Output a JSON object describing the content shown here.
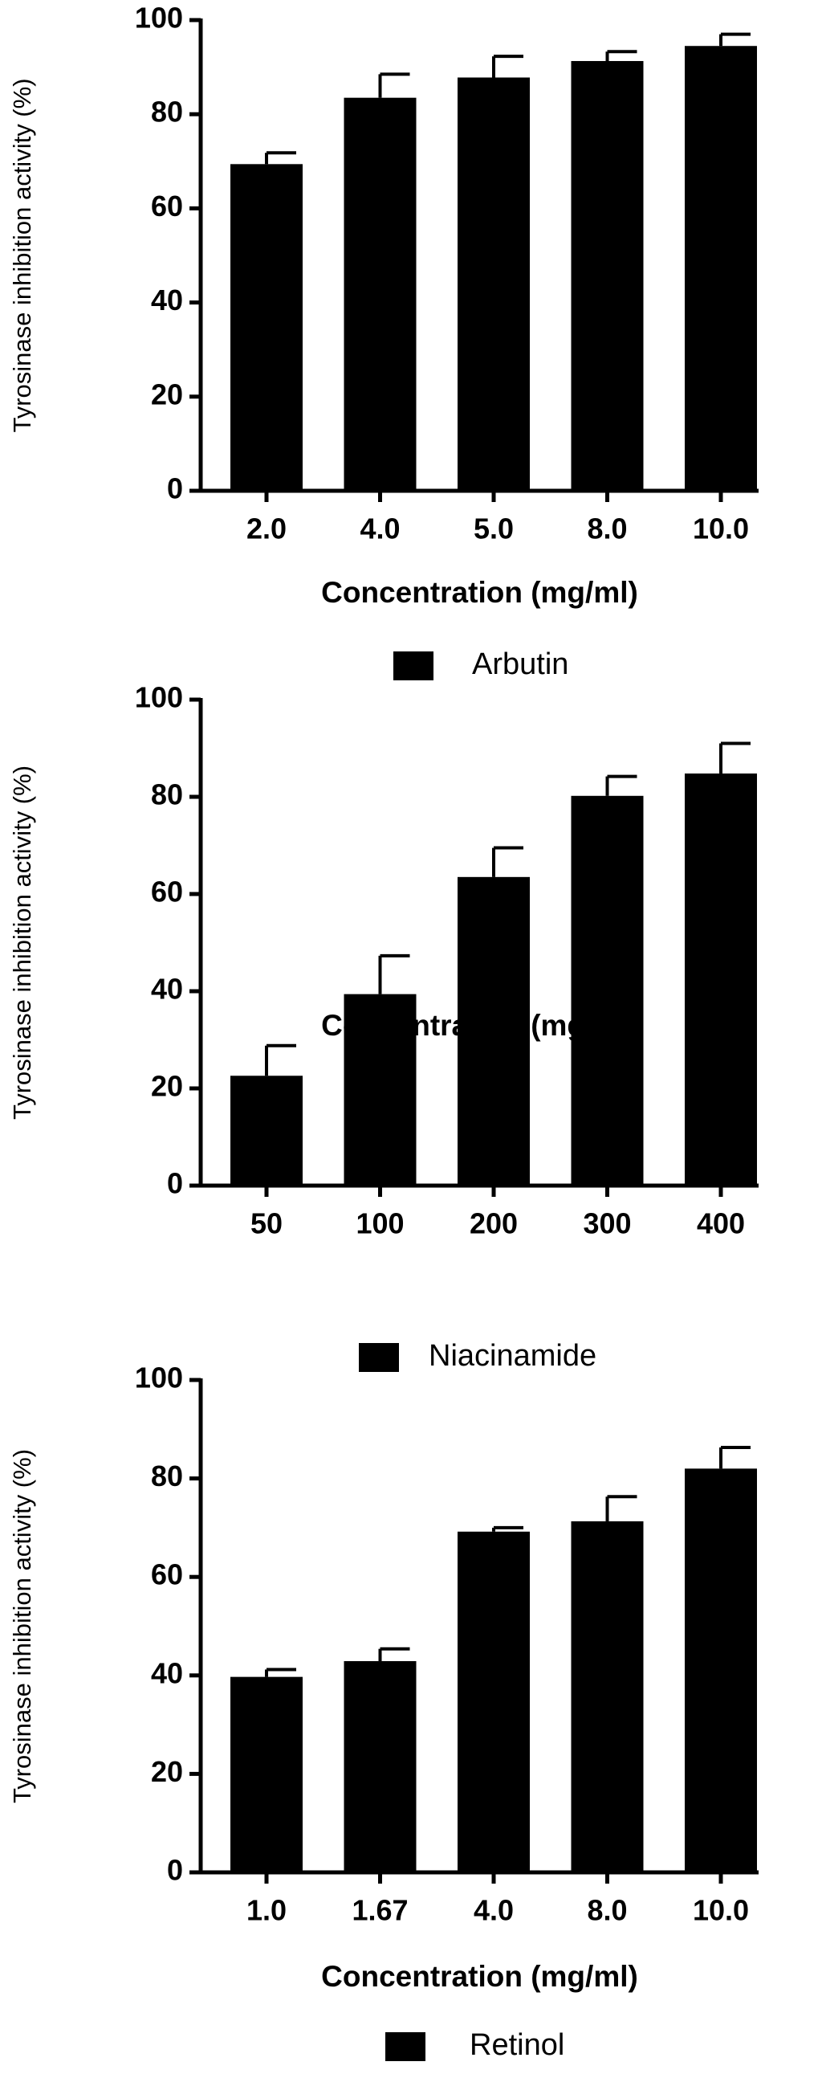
{
  "chart_data": [
    {
      "type": "bar",
      "categories": [
        "2.0",
        "4.0",
        "5.0",
        "8.0",
        "10.0"
      ],
      "series": [
        {
          "name": "Arbutin",
          "color": "#000000",
          "values": [
            69.4,
            83.5,
            87.8,
            91.3,
            94.5
          ],
          "errors": [
            2.4,
            5,
            4.5,
            2,
            2.5
          ]
        }
      ],
      "ylim": [
        0,
        100
      ],
      "yticks": [
        0,
        20,
        40,
        60,
        80,
        100
      ],
      "ylabel": "Tyrosinase inhibition activity (%)",
      "xlabel": "Concentration (mg/ml)"
    },
    {
      "type": "bar",
      "categories": [
        "50",
        "100",
        "200",
        "300",
        "400"
      ],
      "series": [
        {
          "name": "Niacinamide",
          "color": "#000000",
          "values": [
            22.6,
            39.4,
            63.5,
            80.2,
            84.8
          ],
          "errors": [
            6.2,
            7.9,
            6,
            4,
            6.2
          ]
        }
      ],
      "ylim": [
        0,
        100
      ],
      "yticks": [
        0,
        20,
        40,
        60,
        80,
        100
      ],
      "ylabel": "Tyrosinase inhibition activity (%)",
      "xlabel": "Concentration (mg/ml)"
    },
    {
      "type": "bar",
      "categories": [
        "1.0",
        "1.67",
        "4.0",
        "8.0",
        "10.0"
      ],
      "series": [
        {
          "name": "Retinol",
          "color": "#000000",
          "values": [
            39.7,
            42.9,
            69.2,
            71.3,
            82
          ],
          "errors": [
            1.5,
            2.5,
            0.8,
            5,
            4.3
          ]
        }
      ],
      "ylim": [
        0,
        100
      ],
      "yticks": [
        0,
        20,
        40,
        60,
        80,
        100
      ],
      "ylabel": "Tyrosinase inhibition activity (%)",
      "xlabel": "Concentration (mg/ml)"
    }
  ]
}
